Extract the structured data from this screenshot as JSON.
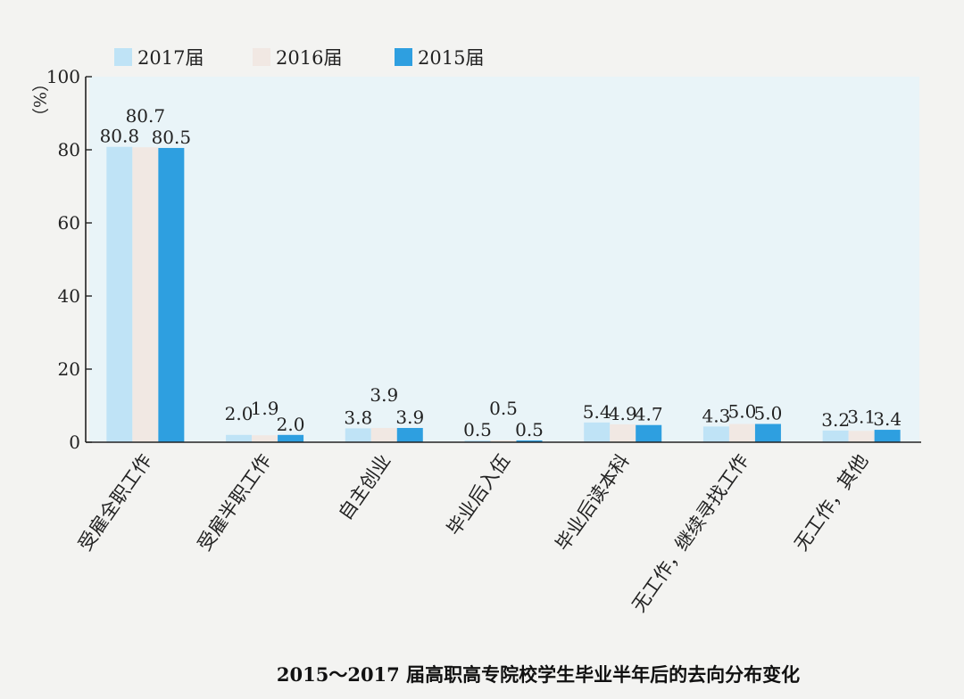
{
  "chart_data": {
    "type": "bar",
    "title": "2015～2017 届高职高专院校学生毕业半年后的去向分布变化",
    "ylabel": "（%）",
    "ylim": [
      0,
      100
    ],
    "yticks": [
      0,
      20,
      40,
      60,
      80,
      100
    ],
    "legend_position": "top-left",
    "categories": [
      "受雇全职工作",
      "受雇半职工作",
      "自主创业",
      "毕业后入伍",
      "毕业后读本科",
      "无工作，继续寻找工作",
      "无工作，其他"
    ],
    "series": [
      {
        "name": "2017届",
        "color": "#bfe3f6",
        "values": [
          80.8,
          2.0,
          3.8,
          0.5,
          5.4,
          4.3,
          3.2
        ],
        "labels": [
          "80.8",
          "2.0",
          "3.8",
          "0.5",
          "5.4",
          "4.3",
          "3.2"
        ]
      },
      {
        "name": "2016届",
        "color": "#f1e8e3",
        "values": [
          80.7,
          1.9,
          3.9,
          0.5,
          4.9,
          5.0,
          3.1
        ],
        "labels": [
          "80.7",
          "1.9",
          "3.9",
          "0.5",
          "4.9",
          "5.0",
          "3.1"
        ]
      },
      {
        "name": "2015届",
        "color": "#2e9fe0",
        "values": [
          80.5,
          2.0,
          3.9,
          0.5,
          4.7,
          5.0,
          3.4
        ],
        "labels": [
          "80.5",
          "2.0",
          "3.9",
          "0.5",
          "4.7",
          "5.0",
          "3.4"
        ]
      }
    ]
  }
}
